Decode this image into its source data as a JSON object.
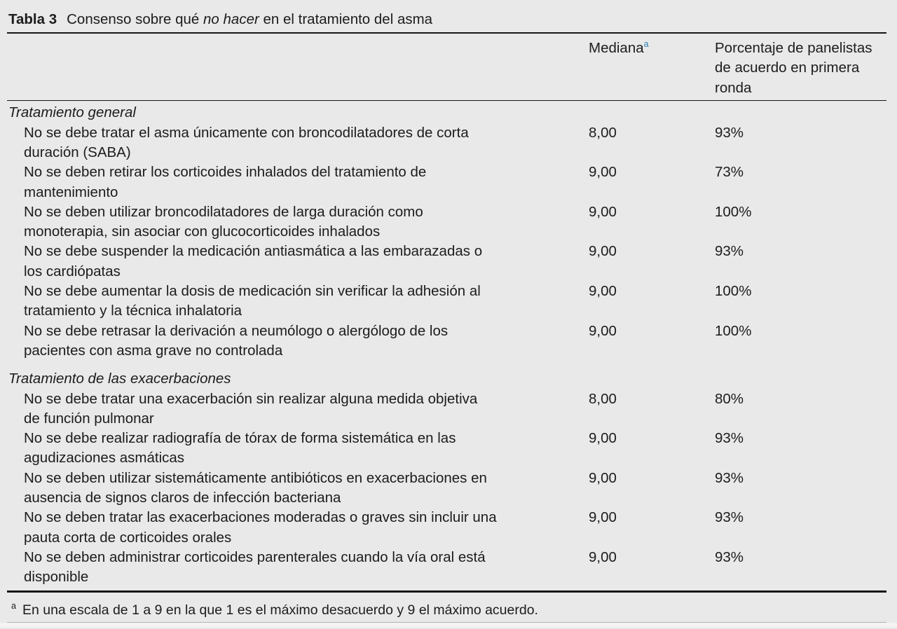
{
  "page": {
    "background": "#e9e9e9",
    "text_color": "#1c1c1c",
    "accent_blue": "#2d7fb5"
  },
  "table": {
    "label": "Tabla 3",
    "title_prefix": "Consenso sobre qué ",
    "title_italic": "no hacer",
    "title_suffix": " en el tratamiento del asma",
    "header": {
      "mediana": "Mediana",
      "mediana_note_marker": "a",
      "porcentaje_lines": [
        "Porcentaje de panelistas",
        "de acuerdo en primera",
        "ronda"
      ]
    },
    "sections": [
      {
        "header": "Tratamiento general",
        "rows": [
          {
            "line1": "No se debe tratar el asma únicamente con broncodilatadores de corta",
            "line2": "duración (SABA)",
            "mediana": "8,00",
            "porcentaje": "93%"
          },
          {
            "line1": "No se deben retirar los corticoides inhalados del tratamiento de",
            "line2": "mantenimiento",
            "mediana": "9,00",
            "porcentaje": "73%"
          },
          {
            "line1": "No se deben utilizar broncodilatadores de larga duración como",
            "line2": "monoterapia, sin asociar con glucocorticoides inhalados",
            "mediana": "9,00",
            "porcentaje": "100%"
          },
          {
            "line1": "No se debe suspender la medicación antiasmática a las embarazadas o",
            "line2": "los cardiópatas",
            "mediana": "9,00",
            "porcentaje": "93%"
          },
          {
            "line1": "No se debe aumentar la dosis de medicación sin verificar la adhesión al",
            "line2": "tratamiento y la técnica inhalatoria",
            "mediana": "9,00",
            "porcentaje": "100%"
          },
          {
            "line1": "No se debe retrasar la derivación a neumólogo o alergólogo de los",
            "line2": "pacientes con asma grave no controlada",
            "mediana": "9,00",
            "porcentaje": "100%"
          }
        ]
      },
      {
        "header": "Tratamiento de las exacerbaciones",
        "rows": [
          {
            "line1": "No se debe tratar una exacerbación sin realizar alguna medida objetiva",
            "line2": "de función pulmonar",
            "mediana": "8,00",
            "porcentaje": "80%"
          },
          {
            "line1": "No se debe realizar radiografía de tórax de forma sistemática en las",
            "line2": "agudizaciones asmáticas",
            "mediana": "9,00",
            "porcentaje": "93%"
          },
          {
            "line1": "No se deben utilizar sistemáticamente antibióticos en exacerbaciones en",
            "line2": "ausencia de signos claros de infección bacteriana",
            "mediana": "9,00",
            "porcentaje": "93%"
          },
          {
            "line1": "No se deben tratar las exacerbaciones moderadas o graves sin incluir una",
            "line2": "pauta corta de corticoides orales",
            "mediana": "9,00",
            "porcentaje": "93%"
          },
          {
            "line1": "No se deben administrar corticoides parenterales cuando la vía oral está",
            "line2": "disponible",
            "mediana": "9,00",
            "porcentaje": "93%"
          }
        ]
      }
    ],
    "footnote": {
      "marker": "a",
      "text": "En una escala de 1 a 9 en la que 1 es el máximo desacuerdo y 9 el máximo acuerdo."
    }
  }
}
